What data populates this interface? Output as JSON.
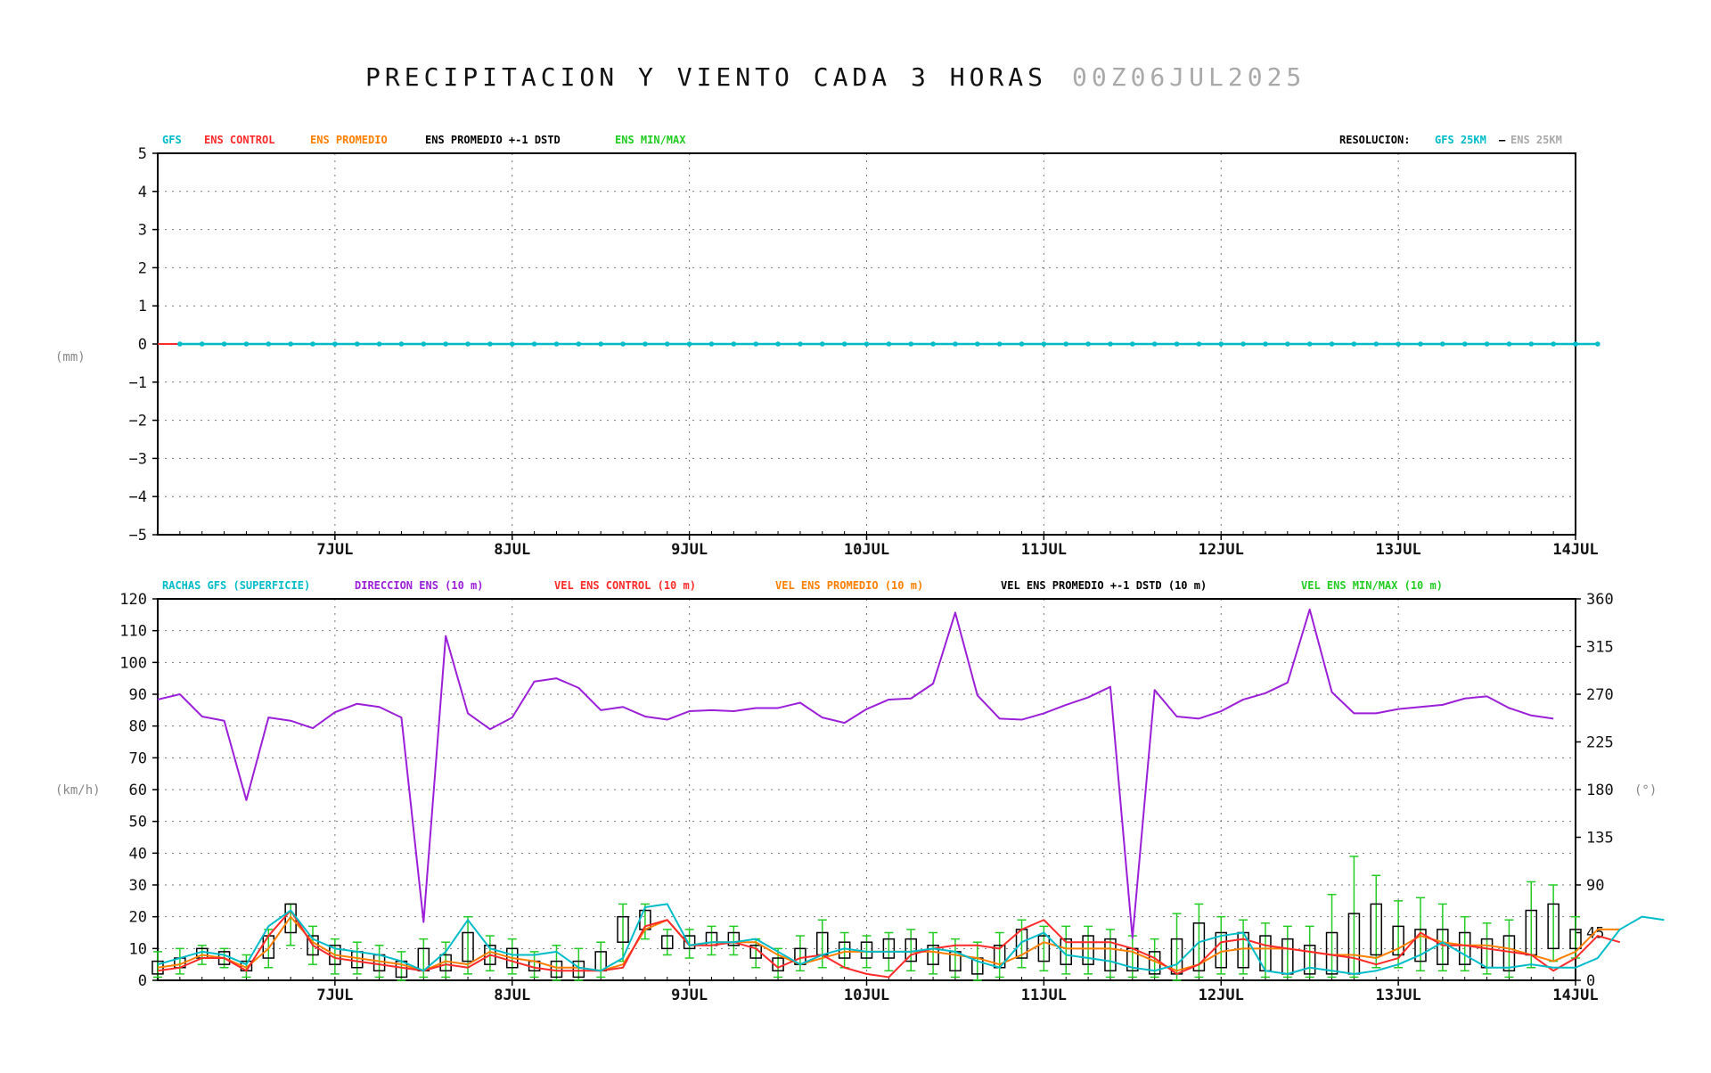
{
  "header": {
    "title": "PRECIPITACION Y VIENTO CADA 3 HORAS",
    "date": "00Z06JUL2025"
  },
  "colors": {
    "gfs": "#00bcc8",
    "ens_control": "#ff2a2a",
    "ens_promedio": "#ff7f00",
    "ens_std": "#000000",
    "ens_minmax": "#22cc22",
    "direccion": "#9b1fd8",
    "gray": "#a9a9a9"
  },
  "chart_data": [
    {
      "type": "line",
      "legend": {
        "gfs": "GFS",
        "ens_control": "ENS CONTROL",
        "ens_promedio": "ENS PROMEDIO",
        "ens_std": "ENS PROMEDIO +-1 DSTD",
        "ens_minmax": "ENS MIN/MAX",
        "resolucion_label": "RESOLUCION:",
        "gfs_res": "GFS 25KM",
        "res_sep": "–",
        "ens_res": "ENS 25KM"
      },
      "ylabel": "(mm)",
      "ylim": [
        -5,
        5
      ],
      "yticks": [
        "5",
        "4",
        "3",
        "2",
        "1",
        "0",
        "−1",
        "−2",
        "−3",
        "−4",
        "−5"
      ],
      "x_start": "00Z06JUL2025",
      "x_step_hours": 3,
      "xticks": [
        "7JUL",
        "8JUL",
        "9JUL",
        "10JUL",
        "11JUL",
        "12JUL",
        "13JUL",
        "14JUL"
      ],
      "series": [
        {
          "name": "GFS",
          "values": [
            0,
            0,
            0,
            0,
            0,
            0,
            0,
            0,
            0,
            0,
            0,
            0,
            0,
            0,
            0,
            0,
            0,
            0,
            0,
            0,
            0,
            0,
            0,
            0,
            0,
            0,
            0,
            0,
            0,
            0,
            0,
            0,
            0,
            0,
            0,
            0,
            0,
            0,
            0,
            0,
            0,
            0,
            0,
            0,
            0,
            0,
            0,
            0,
            0,
            0,
            0,
            0,
            0,
            0,
            0,
            0,
            0,
            0,
            0,
            0,
            0,
            0,
            0,
            0,
            0
          ]
        },
        {
          "name": "ENS CONTROL",
          "values": [
            0,
            0
          ]
        }
      ]
    },
    {
      "type": "line",
      "legend": {
        "rachas": "RACHAS GFS (SUPERFICIE)",
        "direccion": "DIRECCION ENS (10 m)",
        "vel_control": "VEL ENS CONTROL (10 m)",
        "vel_promedio": "VEL ENS PROMEDIO (10 m)",
        "vel_std": "VEL ENS PROMEDIO +-1 DSTD (10 m)",
        "vel_minmax": "VEL ENS MIN/MAX (10 m)"
      },
      "ylabel": "(km/h)",
      "ylabel_right": "(°)",
      "ylim": [
        0,
        120
      ],
      "ylim_right": [
        0,
        360
      ],
      "yticks": [
        "120",
        "110",
        "100",
        "90",
        "80",
        "70",
        "60",
        "50",
        "40",
        "30",
        "20",
        "10",
        "0"
      ],
      "yticks_right": [
        "360",
        "315",
        "270",
        "225",
        "180",
        "135",
        "90",
        "45",
        "0"
      ],
      "xticks": [
        "7JUL",
        "8JUL",
        "9JUL",
        "10JUL",
        "11JUL",
        "12JUL",
        "13JUL",
        "14JUL"
      ],
      "series": [
        {
          "name": "RACHAS GFS (SUPERFICIE)",
          "values": [
            5,
            7,
            9,
            8,
            5,
            17,
            22,
            13,
            10,
            9,
            8,
            6,
            3,
            9,
            19,
            10,
            8,
            8,
            9,
            4,
            3,
            7,
            23,
            24,
            11,
            12,
            12,
            13,
            9,
            5,
            8,
            10,
            9,
            9,
            9,
            10,
            9,
            6,
            4,
            12,
            15,
            8,
            7,
            6,
            4,
            3,
            5,
            12,
            14,
            15,
            3,
            2,
            4,
            3,
            2,
            3,
            5,
            8,
            12,
            8,
            4,
            4,
            5,
            4,
            4,
            7,
            16,
            20,
            19
          ]
        },
        {
          "name": "DIRECCION ENS (10 m)",
          "values": [
            265,
            270,
            249,
            245,
            170,
            248,
            245,
            238,
            253,
            261,
            258,
            248,
            55,
            325,
            252,
            237,
            248,
            282,
            285,
            276,
            255,
            258,
            249,
            246,
            254,
            255,
            254,
            257,
            257,
            262,
            248,
            243,
            256,
            265,
            266,
            280,
            347,
            269,
            247,
            246,
            252,
            260,
            267,
            277,
            40,
            274,
            249,
            247,
            254,
            265,
            271,
            281,
            350,
            272,
            252,
            252,
            256,
            258,
            260,
            266,
            268,
            257,
            250,
            247
          ]
        },
        {
          "name": "VEL ENS CONTROL (10 m)",
          "values": [
            3,
            4,
            7,
            7,
            3,
            14,
            22,
            11,
            7,
            6,
            5,
            4,
            3,
            5,
            4,
            8,
            6,
            4,
            3,
            3,
            3,
            4,
            17,
            19,
            11,
            11,
            12,
            10,
            4,
            7,
            8,
            4,
            2,
            1,
            8,
            10,
            11,
            11,
            10,
            16,
            19,
            12,
            12,
            12,
            10,
            7,
            2,
            5,
            12,
            13,
            11,
            10,
            9,
            8,
            7,
            5,
            7,
            15,
            11,
            11,
            10,
            9,
            8,
            3,
            7,
            14,
            12
          ]
        },
        {
          "name": "VEL ENS PROMEDIO (10 m)",
          "values": [
            4,
            5,
            8,
            7,
            4,
            10,
            20,
            12,
            8,
            7,
            6,
            5,
            3,
            6,
            5,
            9,
            7,
            6,
            4,
            4,
            3,
            5,
            16,
            19,
            11,
            12,
            12,
            12,
            8,
            5,
            7,
            9,
            9,
            9,
            9,
            9,
            8,
            7,
            5,
            8,
            12,
            10,
            10,
            10,
            9,
            6,
            3,
            5,
            9,
            10,
            10,
            10,
            9,
            8,
            8,
            7,
            10,
            14,
            12,
            11,
            11,
            10,
            8,
            6,
            9,
            16,
            16
          ]
        },
        {
          "name": "VEL ENS PROMEDIO +-1 DSTD (10 m)",
          "values": [
            {
              "lo": 2,
              "hi": 6
            },
            {
              "lo": 4,
              "hi": 7
            },
            {
              "lo": 7,
              "hi": 10
            },
            {
              "lo": 5,
              "hi": 9
            },
            {
              "lo": 3,
              "hi": 6
            },
            {
              "lo": 7,
              "hi": 14
            },
            {
              "lo": 15,
              "hi": 24
            },
            {
              "lo": 8,
              "hi": 14
            },
            {
              "lo": 5,
              "hi": 11
            },
            {
              "lo": 4,
              "hi": 9
            },
            {
              "lo": 3,
              "hi": 8
            },
            {
              "lo": 1,
              "hi": 6
            },
            {
              "lo": 3,
              "hi": 10
            },
            {
              "lo": 3,
              "hi": 8
            },
            {
              "lo": 6,
              "hi": 15
            },
            {
              "lo": 5,
              "hi": 11
            },
            {
              "lo": 4,
              "hi": 10
            },
            {
              "lo": 3,
              "hi": 6
            },
            {
              "lo": 1,
              "hi": 6
            },
            {
              "lo": 1,
              "hi": 6
            },
            {
              "lo": 3,
              "hi": 9
            },
            {
              "lo": 12,
              "hi": 20
            },
            {
              "lo": 16,
              "hi": 22
            },
            {
              "lo": 10,
              "hi": 14
            },
            {
              "lo": 10,
              "hi": 14
            },
            {
              "lo": 11,
              "hi": 15
            },
            {
              "lo": 11,
              "hi": 15
            },
            {
              "lo": 7,
              "hi": 11
            },
            {
              "lo": 3,
              "hi": 7
            },
            {
              "lo": 5,
              "hi": 10
            },
            {
              "lo": 8,
              "hi": 15
            },
            {
              "lo": 7,
              "hi": 12
            },
            {
              "lo": 7,
              "hi": 12
            },
            {
              "lo": 7,
              "hi": 13
            },
            {
              "lo": 6,
              "hi": 13
            },
            {
              "lo": 5,
              "hi": 11
            },
            {
              "lo": 3,
              "hi": 9
            },
            {
              "lo": 2,
              "hi": 7
            },
            {
              "lo": 4,
              "hi": 11
            },
            {
              "lo": 7,
              "hi": 16
            },
            {
              "lo": 6,
              "hi": 14
            },
            {
              "lo": 5,
              "hi": 13
            },
            {
              "lo": 5,
              "hi": 14
            },
            {
              "lo": 3,
              "hi": 13
            },
            {
              "lo": 3,
              "hi": 10
            },
            {
              "lo": 2,
              "hi": 9
            },
            {
              "lo": 2,
              "hi": 13
            },
            {
              "lo": 3,
              "hi": 18
            },
            {
              "lo": 4,
              "hi": 15
            },
            {
              "lo": 4,
              "hi": 15
            },
            {
              "lo": 3,
              "hi": 14
            },
            {
              "lo": 2,
              "hi": 13
            },
            {
              "lo": 2,
              "hi": 11
            },
            {
              "lo": 2,
              "hi": 15
            },
            {
              "lo": 2,
              "hi": 21
            },
            {
              "lo": 8,
              "hi": 24
            },
            {
              "lo": 8,
              "hi": 17
            },
            {
              "lo": 6,
              "hi": 16
            },
            {
              "lo": 5,
              "hi": 16
            },
            {
              "lo": 5,
              "hi": 15
            },
            {
              "lo": 4,
              "hi": 13
            },
            {
              "lo": 3,
              "hi": 14
            },
            {
              "lo": 8,
              "hi": 22
            },
            {
              "lo": 10,
              "hi": 24
            },
            {
              "lo": 10,
              "hi": 16
            }
          ]
        },
        {
          "name": "VEL ENS MIN/MAX (10 m)",
          "values": [
            {
              "lo": 1,
              "hi": 9
            },
            {
              "lo": 2,
              "hi": 10
            },
            {
              "lo": 5,
              "hi": 11
            },
            {
              "lo": 4,
              "hi": 10
            },
            {
              "lo": 1,
              "hi": 8
            },
            {
              "lo": 4,
              "hi": 16
            },
            {
              "lo": 11,
              "hi": 24
            },
            {
              "lo": 5,
              "hi": 17
            },
            {
              "lo": 2,
              "hi": 13
            },
            {
              "lo": 2,
              "hi": 12
            },
            {
              "lo": 1,
              "hi": 11
            },
            {
              "lo": 0,
              "hi": 9
            },
            {
              "lo": 1,
              "hi": 13
            },
            {
              "lo": 1,
              "hi": 12
            },
            {
              "lo": 2,
              "hi": 20
            },
            {
              "lo": 3,
              "hi": 14
            },
            {
              "lo": 2,
              "hi": 13
            },
            {
              "lo": 1,
              "hi": 9
            },
            {
              "lo": 0,
              "hi": 11
            },
            {
              "lo": 0,
              "hi": 10
            },
            {
              "lo": 1,
              "hi": 12
            },
            {
              "lo": 6,
              "hi": 24
            },
            {
              "lo": 13,
              "hi": 24
            },
            {
              "lo": 8,
              "hi": 16
            },
            {
              "lo": 7,
              "hi": 16
            },
            {
              "lo": 8,
              "hi": 17
            },
            {
              "lo": 8,
              "hi": 17
            },
            {
              "lo": 4,
              "hi": 13
            },
            {
              "lo": 1,
              "hi": 10
            },
            {
              "lo": 3,
              "hi": 14
            },
            {
              "lo": 4,
              "hi": 19
            },
            {
              "lo": 4,
              "hi": 15
            },
            {
              "lo": 4,
              "hi": 14
            },
            {
              "lo": 3,
              "hi": 15
            },
            {
              "lo": 3,
              "hi": 16
            },
            {
              "lo": 2,
              "hi": 15
            },
            {
              "lo": 1,
              "hi": 13
            },
            {
              "lo": 0,
              "hi": 12
            },
            {
              "lo": 1,
              "hi": 15
            },
            {
              "lo": 4,
              "hi": 19
            },
            {
              "lo": 3,
              "hi": 17
            },
            {
              "lo": 2,
              "hi": 17
            },
            {
              "lo": 2,
              "hi": 17
            },
            {
              "lo": 1,
              "hi": 16
            },
            {
              "lo": 1,
              "hi": 14
            },
            {
              "lo": 1,
              "hi": 13
            },
            {
              "lo": 0,
              "hi": 21
            },
            {
              "lo": 1,
              "hi": 24
            },
            {
              "lo": 2,
              "hi": 20
            },
            {
              "lo": 2,
              "hi": 19
            },
            {
              "lo": 1,
              "hi": 18
            },
            {
              "lo": 1,
              "hi": 17
            },
            {
              "lo": 1,
              "hi": 17
            },
            {
              "lo": 1,
              "hi": 27
            },
            {
              "lo": 1,
              "hi": 39
            },
            {
              "lo": 4,
              "hi": 33
            },
            {
              "lo": 4,
              "hi": 25
            },
            {
              "lo": 3,
              "hi": 26
            },
            {
              "lo": 3,
              "hi": 24
            },
            {
              "lo": 3,
              "hi": 20
            },
            {
              "lo": 2,
              "hi": 18
            },
            {
              "lo": 1,
              "hi": 19
            },
            {
              "lo": 4,
              "hi": 31
            },
            {
              "lo": 6,
              "hi": 30
            },
            {
              "lo": 7,
              "hi": 20
            }
          ]
        }
      ]
    }
  ]
}
